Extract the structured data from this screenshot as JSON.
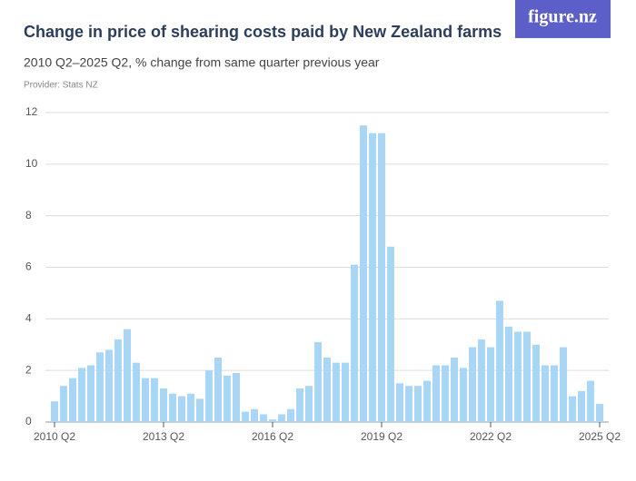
{
  "brand": "figure.nz",
  "chart_data": {
    "type": "bar",
    "title": "Change in price of shearing costs paid by New Zealand farms",
    "subtitle": "2010 Q2–2025 Q2, % change from same quarter previous year",
    "provider": "Provider: Stats NZ",
    "color": "#a9d6f5",
    "grid": true,
    "ylim": [
      0,
      12
    ],
    "yticks": [
      0,
      2,
      4,
      6,
      8,
      10,
      12
    ],
    "categories": [
      "2010 Q2",
      null,
      null,
      null,
      null,
      null,
      null,
      null,
      null,
      null,
      null,
      null,
      "2013 Q2",
      null,
      null,
      null,
      null,
      null,
      null,
      null,
      null,
      null,
      null,
      null,
      "2016 Q2",
      null,
      null,
      null,
      null,
      null,
      null,
      null,
      null,
      null,
      null,
      null,
      "2019 Q2",
      null,
      null,
      null,
      null,
      null,
      null,
      null,
      null,
      null,
      null,
      null,
      "2022 Q2",
      null,
      null,
      null,
      null,
      null,
      null,
      null,
      null,
      null,
      null,
      null,
      "2025 Q2"
    ],
    "values": [
      0.8,
      1.4,
      1.7,
      2.1,
      2.2,
      2.7,
      2.8,
      3.2,
      3.6,
      2.3,
      1.7,
      1.7,
      1.3,
      1.1,
      1.0,
      1.1,
      0.9,
      2.0,
      2.5,
      1.8,
      1.9,
      0.4,
      0.5,
      0.3,
      0.1,
      0.3,
      0.5,
      1.3,
      1.4,
      3.1,
      2.5,
      2.3,
      2.3,
      6.1,
      11.5,
      11.2,
      11.2,
      6.8,
      1.5,
      1.4,
      1.4,
      1.6,
      2.2,
      2.2,
      2.5,
      2.1,
      2.9,
      3.2,
      2.9,
      4.7,
      3.7,
      3.5,
      3.5,
      3.0,
      2.2,
      2.2,
      2.9,
      1.0,
      1.2,
      1.6,
      0.7
    ]
  }
}
